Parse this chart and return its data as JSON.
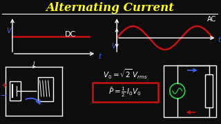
{
  "title": "Alternating Current",
  "title_color": "#FFFF00",
  "bg_color": "#0d0d0d",
  "line_color": "#ffffff",
  "dc_line_color": "#bb1111",
  "ac_line_color": "#cc1111",
  "label_dc": "DC",
  "label_ac": "AC",
  "label_v": "V",
  "label_t": "t",
  "formula1": "$V_0 = \\sqrt{2}\\,V_{rms}$",
  "formula2": "$\\bar{P} = \\frac{1}{2}\\,I_0 V_0$",
  "blue_color": "#4466ff",
  "red_color": "#cc1111",
  "green_color": "#22cc44",
  "white": "#ffffff"
}
